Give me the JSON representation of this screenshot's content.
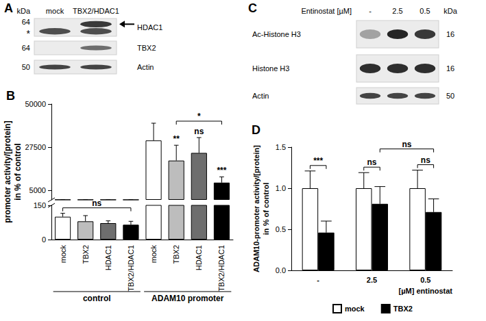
{
  "chart_data": [
    {
      "type": "bar",
      "title": "B",
      "ylabel": "promoter activity/[protein]\nin % of control",
      "categories": [
        "mock",
        "TBX2",
        "HDAC1",
        "TBX2/HDAC1",
        "mock",
        "TBX2",
        "HDAC1",
        "TBX2/HDAC1"
      ],
      "values": [
        100,
        80,
        72,
        65,
        31000,
        20500,
        24500,
        9000
      ],
      "errors": [
        15,
        25,
        10,
        15,
        9000,
        8000,
        8000,
        3000
      ],
      "colors": [
        "#ffffff",
        "#bdbdbd",
        "#6e6e6e",
        "#000000",
        "#ffffff",
        "#bdbdbd",
        "#6e6e6e",
        "#000000"
      ],
      "axis_segments": [
        {
          "ylim": [
            0,
            150
          ],
          "yticks": [
            0,
            150
          ]
        },
        {
          "ylim": [
            0,
            50000
          ],
          "yticks": [
            5000,
            27500,
            50000
          ]
        }
      ],
      "groups": [
        {
          "label": "control",
          "from": 0,
          "to": 3
        },
        {
          "label": "ADAM10 promoter",
          "from": 4,
          "to": 7
        }
      ],
      "significance": [
        null,
        null,
        null,
        null,
        null,
        "**",
        "ns",
        "***"
      ],
      "brackets": [
        {
          "from": 0,
          "to": 3,
          "text": "ns"
        },
        {
          "from": 5,
          "to": 7,
          "text": "*"
        }
      ],
      "grid": false
    },
    {
      "type": "bar",
      "title": "D",
      "ylabel": "ADAM10-promoter activity/[protein]\nin % of control",
      "xlabel": "[µM] entinostat",
      "categories": [
        "-",
        "2.5",
        "0.5"
      ],
      "series": [
        {
          "name": "mock",
          "color": "#ffffff",
          "values": [
            1.0,
            1.0,
            1.0
          ],
          "errors": [
            0.21,
            0.19,
            0.22
          ]
        },
        {
          "name": "TBX2",
          "color": "#000000",
          "values": [
            0.46,
            0.81,
            0.71
          ],
          "errors": [
            0.14,
            0.21,
            0.16
          ]
        }
      ],
      "ylim": [
        0,
        1.5
      ],
      "yticks": [
        {
          "value": 0,
          "label": "0.0"
        },
        0.5,
        {
          "value": 1,
          "label": "1.0"
        },
        1.5
      ],
      "brackets": [
        {
          "from": {
            "category": 0,
            "series": 0
          },
          "to": {
            "category": 0,
            "series": 1
          },
          "text": "***"
        },
        {
          "from": {
            "category": 1,
            "series": 0
          },
          "to": {
            "category": 1,
            "series": 1
          },
          "text": "ns"
        },
        {
          "from": {
            "category": 2,
            "series": 0
          },
          "to": {
            "category": 2,
            "series": 1
          },
          "text": "ns"
        },
        {
          "from": {
            "category": 1,
            "series": 1
          },
          "to": {
            "category": 2,
            "series": 1
          },
          "text": "ns"
        }
      ],
      "legend": "bottom",
      "grid": false
    }
  ],
  "blots": [
    {
      "panel": "A",
      "unit": "kDa",
      "lanes": [
        "mock",
        "TBX2/HDAC1"
      ],
      "rows": [
        {
          "label": "HDAC1",
          "kda": 64,
          "bands": [
            0.75,
            0.75
          ],
          "upper_bands": [
            0,
            0.85
          ],
          "marker": "*"
        },
        {
          "label": "TBX2",
          "kda": 64,
          "bands": [
            0,
            0.6
          ]
        },
        {
          "label": "Actin",
          "kda": 50,
          "bands": [
            0.8,
            0.8
          ]
        }
      ]
    },
    {
      "panel": "C",
      "title": "Entinostat [µM]",
      "unit": "kDa",
      "lanes": [
        "-",
        "2.5",
        "0.5"
      ],
      "rows": [
        {
          "label": "Ac-Histone H3",
          "kda": 16,
          "bands": [
            0.35,
            0.95,
            0.85
          ]
        },
        {
          "label": "Histone H3",
          "kda": 16,
          "bands": [
            0.9,
            0.9,
            0.9
          ]
        },
        {
          "label": "Actin",
          "kda": 50,
          "bands": [
            0.8,
            0.8,
            0.8
          ]
        }
      ]
    }
  ]
}
